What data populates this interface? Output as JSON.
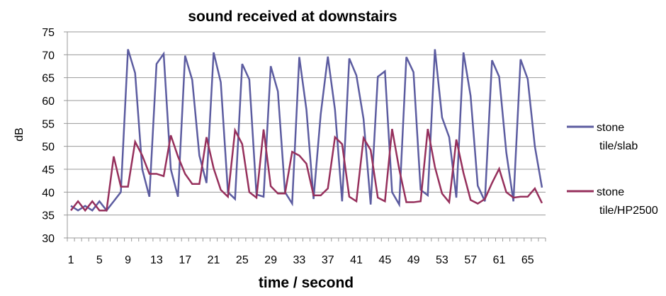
{
  "chart_data": {
    "type": "line",
    "title": "sound received at downstairs",
    "xlabel": "time / second",
    "ylabel": "dB",
    "ylim": [
      30,
      75
    ],
    "yticks": [
      30,
      35,
      40,
      45,
      50,
      55,
      60,
      65,
      70,
      75
    ],
    "xtick_labels": [
      "1",
      "5",
      "9",
      "13",
      "17",
      "21",
      "25",
      "29",
      "33",
      "37",
      "41",
      "45",
      "49",
      "53",
      "57",
      "61",
      "65"
    ],
    "grid": true,
    "legend_position": "right",
    "x": [
      1,
      2,
      3,
      4,
      5,
      6,
      7,
      8,
      9,
      10,
      11,
      12,
      13,
      14,
      15,
      16,
      17,
      18,
      19,
      20,
      21,
      22,
      23,
      24,
      25,
      26,
      27,
      28,
      29,
      30,
      31,
      32,
      33,
      34,
      35,
      36,
      37,
      38,
      39,
      40,
      41,
      42,
      43,
      44,
      45,
      46,
      47,
      48,
      49,
      50,
      51,
      52,
      53,
      54,
      55,
      56,
      57,
      58,
      59,
      60,
      61,
      62,
      63,
      64,
      65,
      66,
      67
    ],
    "series": [
      {
        "name_lines": [
          "stone",
          "tile/slab"
        ],
        "color": "#5C5CA0",
        "values": [
          37,
          36,
          37,
          36,
          38,
          36,
          38,
          40,
          71.2,
          66,
          45,
          39,
          68,
          70.2,
          45,
          39,
          69.8,
          64.5,
          48,
          42,
          70.5,
          64,
          40,
          38.5,
          68,
          64.6,
          39.5,
          39,
          67.5,
          62,
          40,
          37.5,
          69.5,
          58,
          38.5,
          57,
          69.6,
          58,
          38,
          69.2,
          65.5,
          56,
          37.3,
          65.2,
          66.4,
          40,
          37.3,
          69.5,
          66.2,
          40.5,
          39.3,
          71.2,
          56.3,
          52,
          38.8,
          70.5,
          61,
          41.4,
          38,
          68.8,
          65.2,
          48.7,
          38,
          69,
          64.7,
          50,
          41
        ]
      },
      {
        "name_lines": [
          "stone",
          "tile/HP2500"
        ],
        "color": "#96305C",
        "values": [
          36,
          38,
          36,
          38,
          36,
          36,
          47.8,
          41.2,
          41.2,
          51,
          48,
          44,
          44,
          43.5,
          52.4,
          47.8,
          44,
          41.8,
          41.8,
          52,
          45.2,
          40.5,
          39,
          53.5,
          50.5,
          40,
          38.8,
          53.7,
          41.3,
          39.7,
          39.7,
          48.8,
          48,
          46.2,
          39.3,
          39.3,
          40.8,
          52,
          50.5,
          39,
          38,
          51.8,
          49.2,
          38.8,
          38,
          53.8,
          45,
          37.8,
          37.8,
          38,
          53.8,
          45.5,
          39.7,
          37.8,
          51.5,
          44.2,
          38.3,
          37.5,
          38.5,
          42,
          45.1,
          40,
          38.8,
          39,
          39,
          40.8,
          37.6
        ]
      }
    ]
  }
}
